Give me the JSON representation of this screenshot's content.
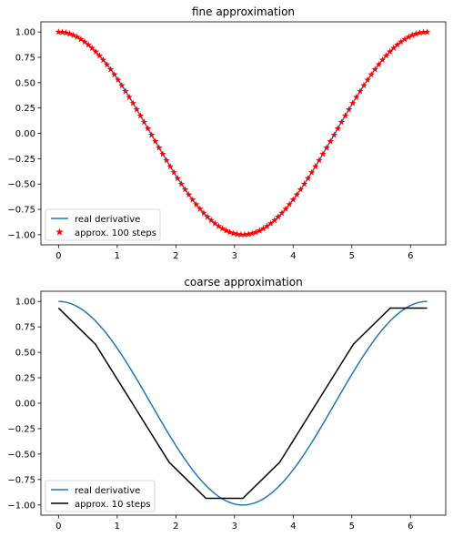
{
  "chart_data": [
    {
      "type": "line",
      "title": "fine approximation",
      "xlabel": "",
      "ylabel": "",
      "xlim": [
        -0.3,
        6.6
      ],
      "ylim": [
        -1.1,
        1.1
      ],
      "xticks": [
        0,
        1,
        2,
        3,
        4,
        5,
        6
      ],
      "xtick_labels": [
        "0",
        "1",
        "2",
        "3",
        "4",
        "5",
        "6"
      ],
      "yticks": [
        1.0,
        0.75,
        0.5,
        0.25,
        0.0,
        -0.25,
        -0.5,
        -0.75,
        -1.0
      ],
      "ytick_labels": [
        "1.00",
        "0.75",
        "0.50",
        "0.25",
        "0.00",
        "−0.25",
        "−0.50",
        "−0.75",
        "−1.00"
      ],
      "grid": false,
      "legend_position": "lower-left",
      "series": [
        {
          "name": "real derivative",
          "function": "cos(x)",
          "x_range": [
            0,
            6.2832
          ],
          "color": "#1f77b4",
          "style": "line"
        },
        {
          "name": "approx. 100 steps",
          "function": "cos(x)",
          "x_range": [
            0,
            6.2832
          ],
          "count": 100,
          "color": "#ff0000",
          "style": "star-markers"
        }
      ]
    },
    {
      "type": "line",
      "title": "coarse approximation",
      "xlabel": "",
      "ylabel": "",
      "xlim": [
        -0.3,
        6.6
      ],
      "ylim": [
        -1.1,
        1.1
      ],
      "xticks": [
        0,
        1,
        2,
        3,
        4,
        5,
        6
      ],
      "xtick_labels": [
        "0",
        "1",
        "2",
        "3",
        "4",
        "5",
        "6"
      ],
      "yticks": [
        1.0,
        0.75,
        0.5,
        0.25,
        0.0,
        -0.25,
        -0.5,
        -0.75,
        -1.0
      ],
      "ytick_labels": [
        "1.00",
        "0.75",
        "0.50",
        "0.25",
        "0.00",
        "−0.25",
        "−0.50",
        "−0.75",
        "−1.00"
      ],
      "grid": false,
      "legend_position": "lower-left",
      "series": [
        {
          "name": "real derivative",
          "function": "cos(x)",
          "x_range": [
            0,
            6.2832
          ],
          "color": "#1f77b4",
          "style": "line"
        },
        {
          "name": "approx. 10 steps",
          "color": "#000000",
          "style": "line",
          "x": [
            0,
            0.628,
            1.257,
            1.885,
            2.513,
            3.142,
            3.77,
            4.398,
            5.027,
            5.655,
            6.283
          ],
          "y": [
            0.935,
            0.58,
            0.0,
            -0.58,
            -0.935,
            -0.935,
            -0.58,
            0.0,
            0.58,
            0.935,
            0.935
          ]
        }
      ]
    }
  ]
}
